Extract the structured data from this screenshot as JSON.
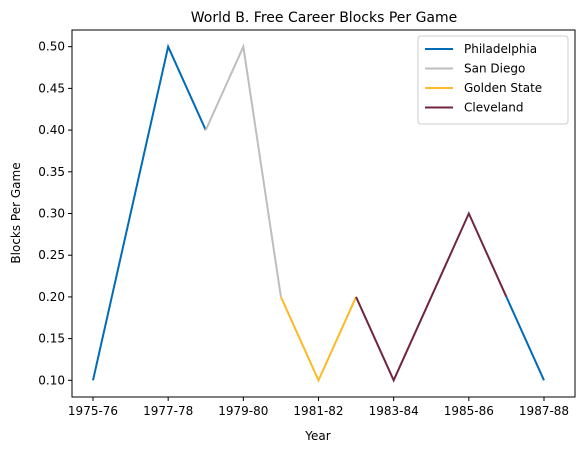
{
  "chart_data": {
    "type": "line",
    "title": "World B. Free Career Blocks Per Game",
    "xlabel": "Year",
    "ylabel": "Blocks Per Game",
    "x": [
      "1975-76",
      "1976-77",
      "1977-78",
      "1978-79",
      "1979-80",
      "1980-81",
      "1981-82",
      "1982-83",
      "1983-84",
      "1984-85",
      "1985-86",
      "1986-87",
      "1987-88"
    ],
    "x_tick_labels": [
      "1975-76",
      "1977-78",
      "1979-80",
      "1981-82",
      "1983-84",
      "1985-86",
      "1987-88"
    ],
    "ylim": [
      0.08,
      0.52
    ],
    "y_ticks": [
      "0.10",
      "0.15",
      "0.20",
      "0.25",
      "0.30",
      "0.35",
      "0.40",
      "0.45",
      "0.50"
    ],
    "grid": false,
    "legend_position": "top-right",
    "series": [
      {
        "name": "Philadelphia",
        "color": "#006bb6",
        "segments": [
          {
            "x": [
              "1975-76",
              "1976-77",
              "1977-78",
              "1978-79"
            ],
            "y": [
              0.1,
              0.3,
              0.5,
              0.4
            ]
          },
          {
            "x": [
              "1986-87",
              "1987-88"
            ],
            "y": [
              0.2,
              0.1
            ]
          }
        ]
      },
      {
        "name": "San Diego",
        "color": "#bebebe",
        "segments": [
          {
            "x": [
              "1978-79",
              "1979-80",
              "1980-81"
            ],
            "y": [
              0.4,
              0.5,
              0.2
            ]
          }
        ]
      },
      {
        "name": "Golden State",
        "color": "#fdb927",
        "segments": [
          {
            "x": [
              "1980-81",
              "1981-82",
              "1982-83"
            ],
            "y": [
              0.2,
              0.1,
              0.2
            ]
          }
        ]
      },
      {
        "name": "Cleveland",
        "color": "#6f263d",
        "segments": [
          {
            "x": [
              "1982-83",
              "1983-84",
              "1984-85",
              "1985-86",
              "1986-87"
            ],
            "y": [
              0.2,
              0.1,
              0.2,
              0.3,
              0.2
            ]
          }
        ]
      }
    ]
  }
}
